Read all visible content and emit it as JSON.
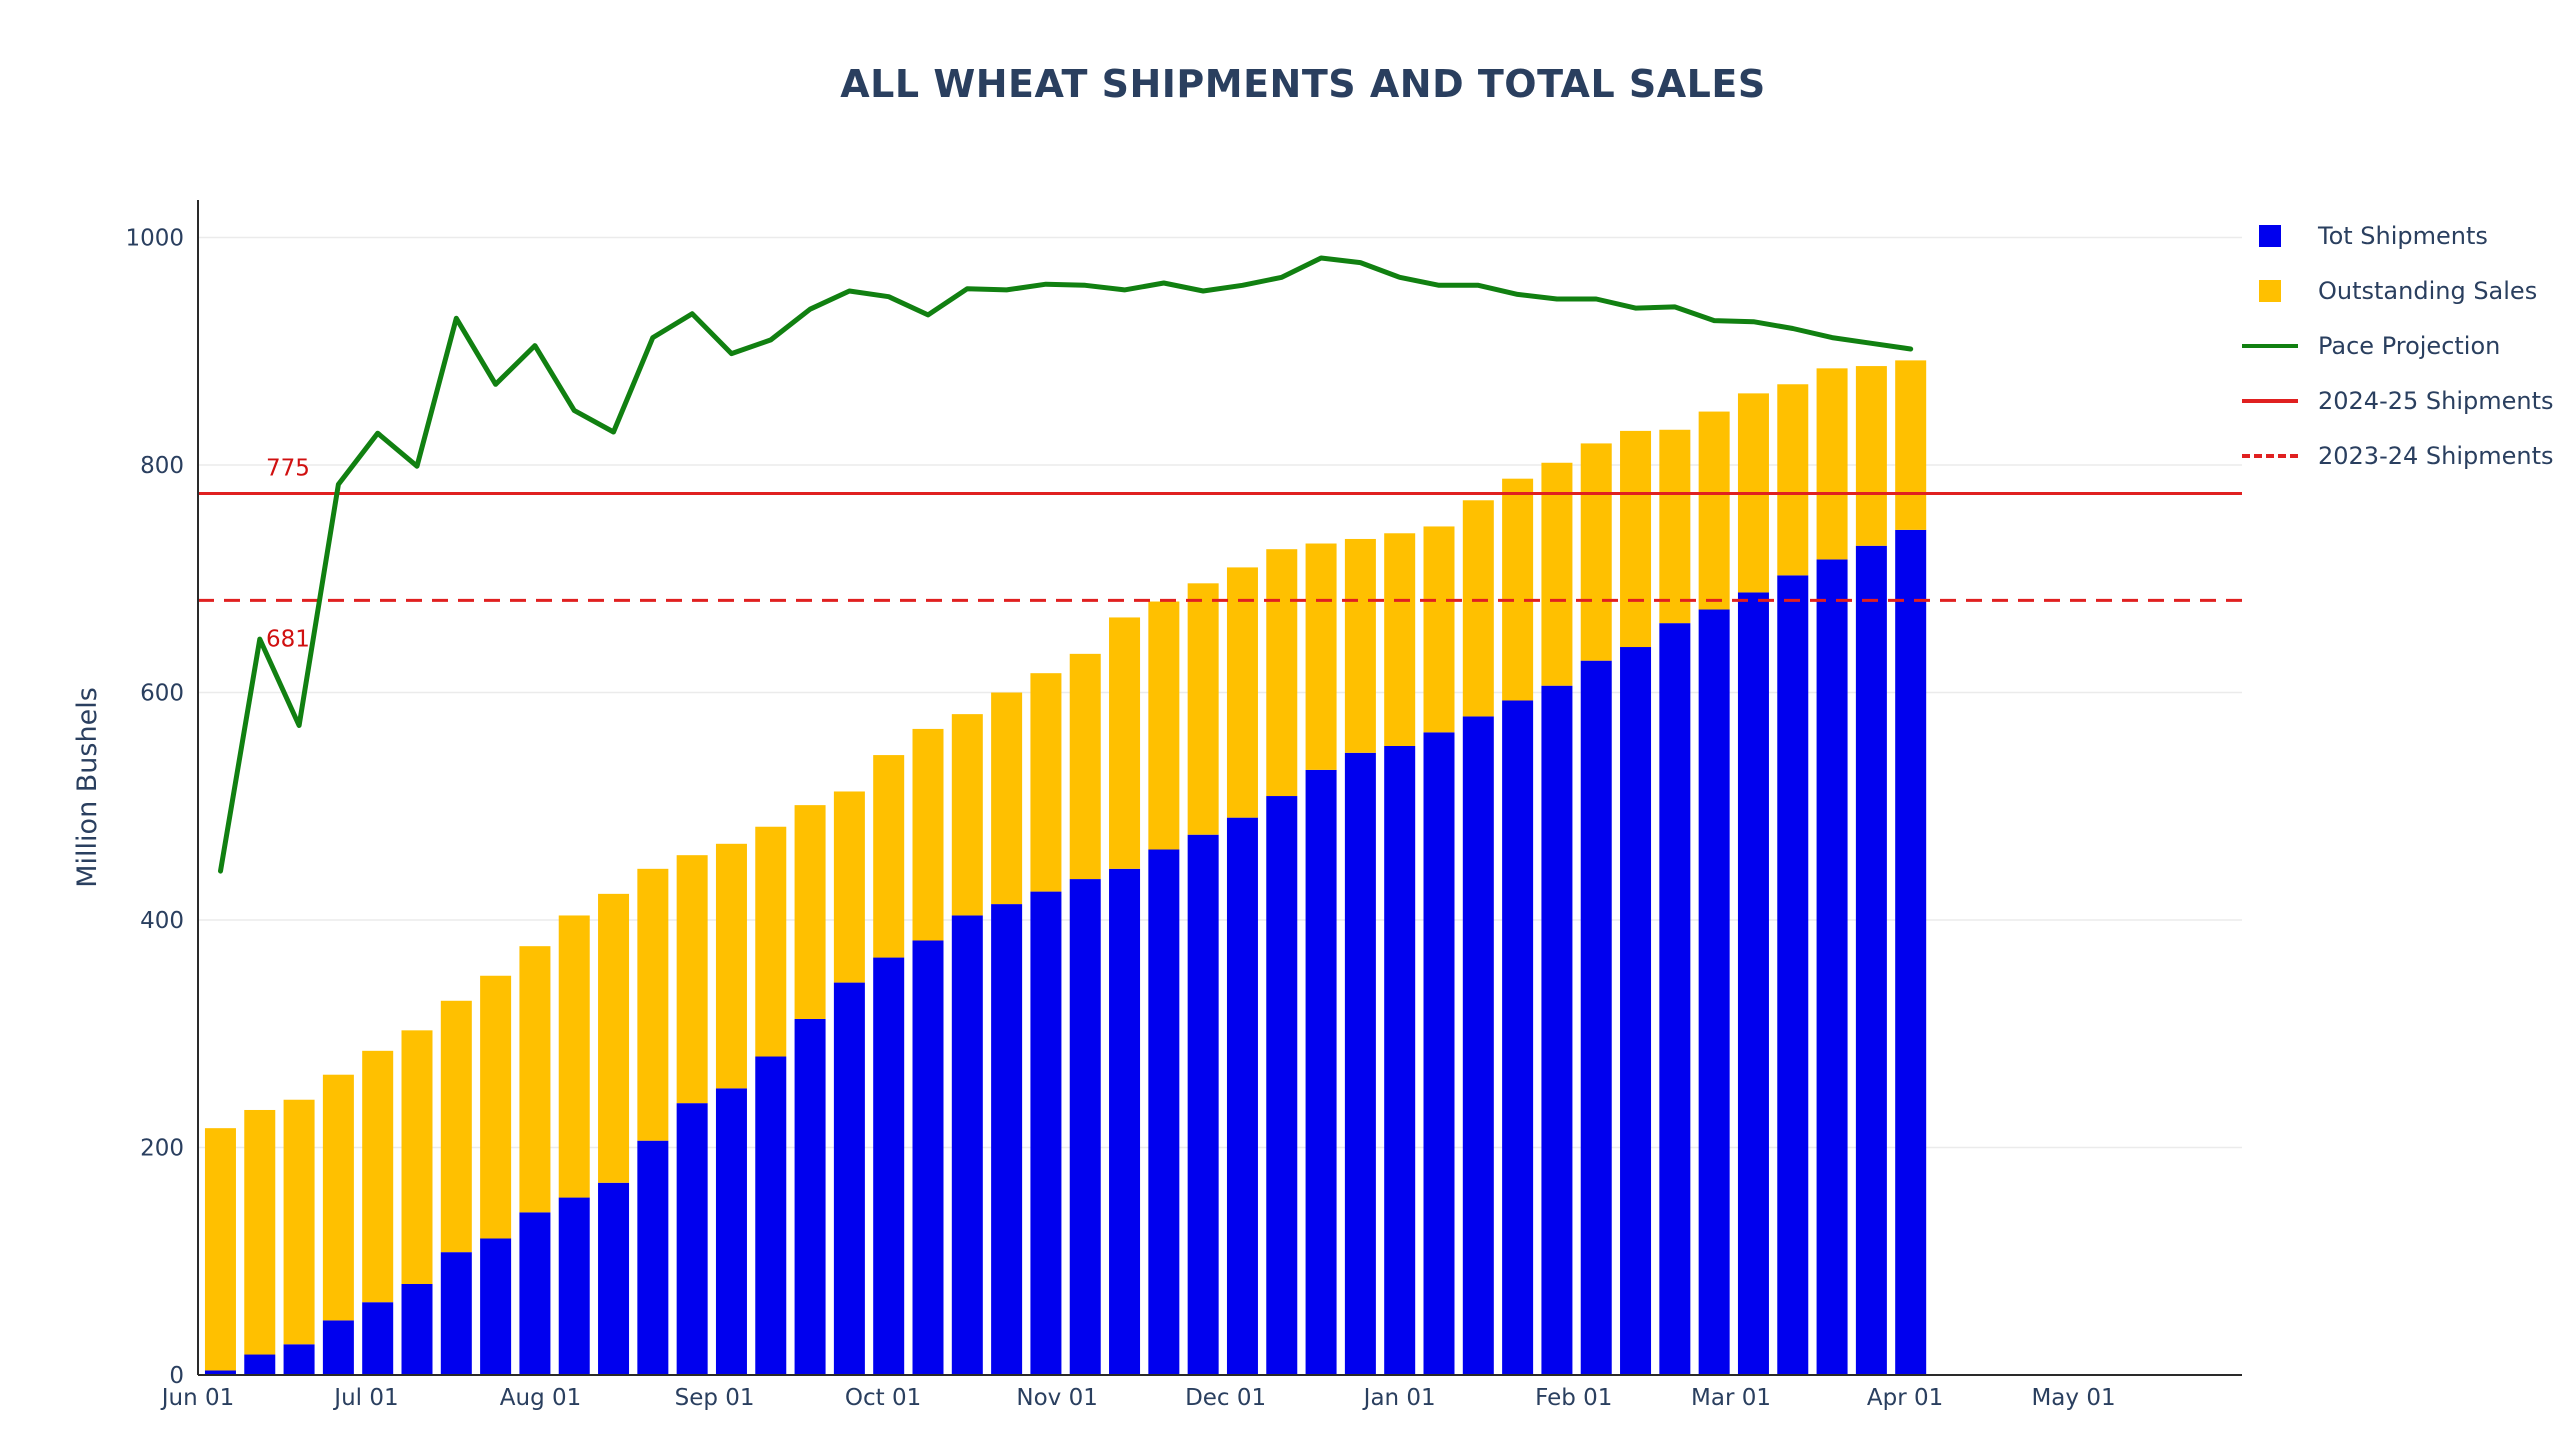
{
  "title": "ALL WHEAT SHIPMENTS AND TOTAL SALES",
  "colors": {
    "shipments": "#0000ee",
    "outstanding": "#ffc000",
    "pace": "#118011",
    "shipments_2024_25": "#e02020",
    "shipments_2023_24": "#e02020",
    "annotation": "#d01010",
    "axis_text": "#2a3f5f",
    "grid": "#ebebeb"
  },
  "legend": {
    "items": [
      {
        "label": "Tot Shipments",
        "kind": "box",
        "color": "#0000ee"
      },
      {
        "label": "Outstanding Sales",
        "kind": "box",
        "color": "#ffc000"
      },
      {
        "label": "Pace Projection",
        "kind": "line",
        "color": "#118011"
      },
      {
        "label": "2024-25 Shipments",
        "kind": "line",
        "color": "#e02020"
      },
      {
        "label": "2023-24 Shipments",
        "kind": "dash",
        "color": "#e02020"
      }
    ]
  },
  "chart_data": {
    "type": "bar",
    "title": "ALL WHEAT SHIPMENTS AND TOTAL SALES",
    "xlabel": "",
    "ylabel": "Million Bushels",
    "barmode": "stack",
    "ylim": [
      0,
      1033
    ],
    "xlim": [
      "2024-06-01",
      "2025-05-31"
    ],
    "yticks": [
      0,
      200,
      400,
      600,
      800,
      1000
    ],
    "xticks": [
      {
        "date": "2024-06-01",
        "label": "Jun 01"
      },
      {
        "date": "2024-07-01",
        "label": "Jul 01"
      },
      {
        "date": "2024-08-01",
        "label": "Aug 01"
      },
      {
        "date": "2024-09-01",
        "label": "Sep 01"
      },
      {
        "date": "2024-10-01",
        "label": "Oct 01"
      },
      {
        "date": "2024-11-01",
        "label": "Nov 01"
      },
      {
        "date": "2024-12-01",
        "label": "Dec 01"
      },
      {
        "date": "2025-01-01",
        "label": "Jan 01"
      },
      {
        "date": "2025-02-01",
        "label": "Feb 01"
      },
      {
        "date": "2025-03-01",
        "label": "Mar 01"
      },
      {
        "date": "2025-04-01",
        "label": "Apr 01"
      },
      {
        "date": "2025-05-01",
        "label": "May 01"
      }
    ],
    "grid": true,
    "legend_position": "top-right",
    "dates": [
      "2024-06-05",
      "2024-06-12",
      "2024-06-19",
      "2024-06-26",
      "2024-07-03",
      "2024-07-10",
      "2024-07-17",
      "2024-07-24",
      "2024-07-31",
      "2024-08-07",
      "2024-08-14",
      "2024-08-21",
      "2024-08-28",
      "2024-09-04",
      "2024-09-11",
      "2024-09-18",
      "2024-09-25",
      "2024-10-02",
      "2024-10-09",
      "2024-10-16",
      "2024-10-23",
      "2024-10-30",
      "2024-11-06",
      "2024-11-13",
      "2024-11-20",
      "2024-11-27",
      "2024-12-04",
      "2024-12-11",
      "2024-12-18",
      "2024-12-25",
      "2025-01-01",
      "2025-01-08",
      "2025-01-15",
      "2025-01-22",
      "2025-01-29",
      "2025-02-05",
      "2025-02-12",
      "2025-02-19",
      "2025-02-26",
      "2025-03-05",
      "2025-03-12",
      "2025-03-19",
      "2025-03-26",
      "2025-04-02"
    ],
    "series": [
      {
        "name": "Tot Shipments",
        "kind": "bar",
        "values": [
          4,
          18,
          27,
          48,
          64,
          80,
          108,
          120,
          143,
          156,
          169,
          206,
          239,
          252,
          280,
          313,
          345,
          367,
          382,
          404,
          414,
          425,
          436,
          445,
          462,
          475,
          490,
          509,
          532,
          547,
          553,
          565,
          579,
          593,
          606,
          628,
          640,
          661,
          673,
          688,
          703,
          717,
          729,
          743
        ]
      },
      {
        "name": "Outstanding Sales",
        "kind": "bar",
        "values": [
          213,
          215,
          215,
          216,
          221,
          223,
          221,
          231,
          234,
          248,
          254,
          239,
          218,
          215,
          202,
          188,
          168,
          178,
          186,
          177,
          186,
          192,
          198,
          221,
          218,
          221,
          220,
          217,
          199,
          188,
          187,
          181,
          190,
          195,
          196,
          191,
          190,
          170,
          174,
          175,
          168,
          168,
          158,
          149
        ]
      },
      {
        "name": "Pace Projection",
        "kind": "line",
        "values": [
          443,
          647,
          571,
          783,
          828,
          799,
          929,
          871,
          905,
          848,
          829,
          912,
          933,
          898,
          910,
          937,
          953,
          948,
          932,
          955,
          954,
          959,
          958,
          954,
          960,
          953,
          958,
          965,
          982,
          978,
          965,
          958,
          958,
          950,
          946,
          946,
          938,
          939,
          927,
          926,
          920,
          912,
          907,
          902
        ]
      },
      {
        "name": "2024-25 Shipments",
        "kind": "hline",
        "value": 775
      },
      {
        "name": "2023-24 Shipments",
        "kind": "hline",
        "value": 681,
        "dash": true
      }
    ],
    "annotations": [
      {
        "text": "775",
        "value": 775
      },
      {
        "text": "681",
        "value": 681
      }
    ]
  }
}
